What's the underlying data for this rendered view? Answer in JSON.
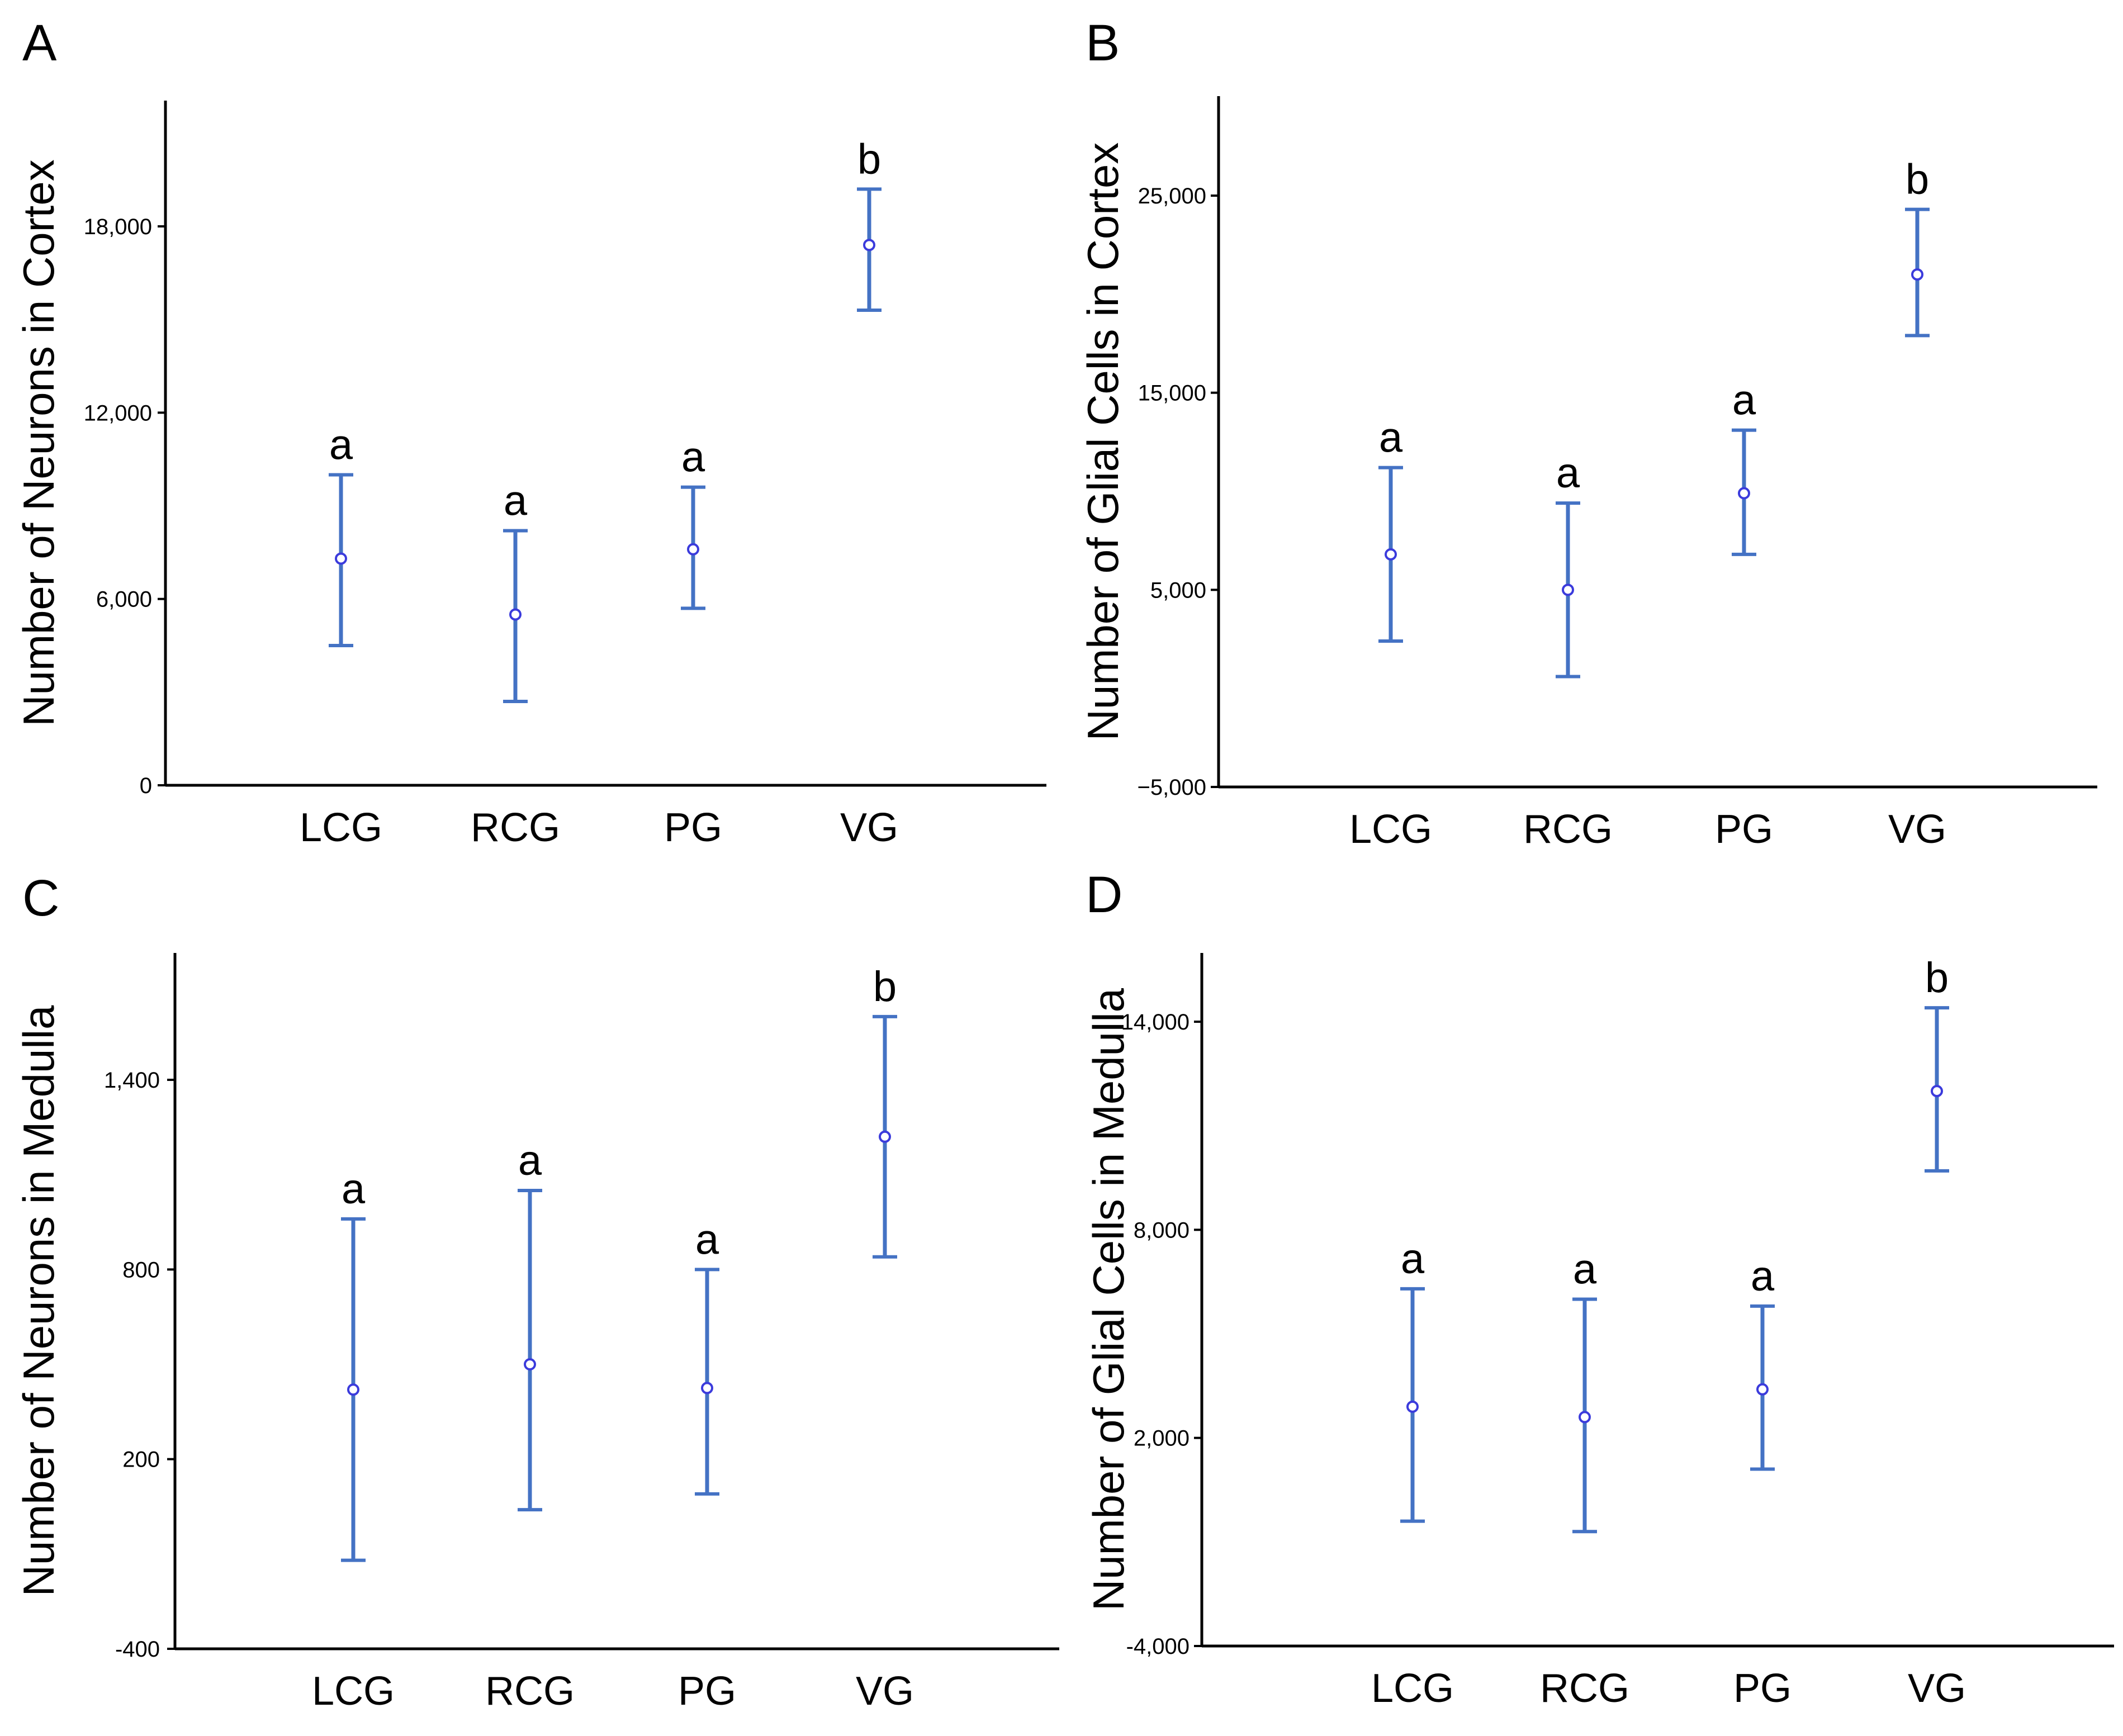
{
  "colors": {
    "errorbar": "#4472c4",
    "axis": "#000000",
    "point": "#3b3bdc"
  },
  "chart_data": [
    {
      "type": "errorbar",
      "panel": "A",
      "title": "",
      "xlabel": "",
      "ylabel": "Number of Neurons in Cortex",
      "categories": [
        "LCG",
        "RCG",
        "PG",
        "VG"
      ],
      "values": [
        7300,
        5500,
        7600,
        17400
      ],
      "lower": [
        4500,
        2700,
        5700,
        15300
      ],
      "upper": [
        10000,
        8200,
        9600,
        19200
      ],
      "significance": [
        "a",
        "a",
        "a",
        "b"
      ],
      "ylim": [
        0,
        22000
      ],
      "yticks": [
        0,
        6000,
        12000,
        18000
      ],
      "ytick_labels": [
        "0",
        "6,000",
        "12,000",
        "18,000"
      ],
      "grid": false
    },
    {
      "type": "errorbar",
      "panel": "B",
      "title": "",
      "xlabel": "",
      "ylabel": "Number of Glial Cells in Cortex",
      "categories": [
        "LCG",
        "RCG",
        "PG",
        "VG"
      ],
      "values": [
        6800,
        5000,
        9900,
        21000
      ],
      "lower": [
        2400,
        600,
        6800,
        17900
      ],
      "upper": [
        11200,
        9400,
        13100,
        24300
      ],
      "significance": [
        "a",
        "a",
        "a",
        "b"
      ],
      "ylim": [
        -5000,
        30000
      ],
      "yticks": [
        -5000,
        5000,
        15000,
        25000
      ],
      "ytick_labels": [
        "−5,000",
        "5,000",
        "15,000",
        "25,000"
      ],
      "grid": false
    },
    {
      "type": "errorbar",
      "panel": "C",
      "title": "",
      "xlabel": "",
      "ylabel": "Number of Neurons in Medulla",
      "categories": [
        "LCG",
        "RCG",
        "PG",
        "VG"
      ],
      "values": [
        420,
        500,
        425,
        1220
      ],
      "lower": [
        -120,
        40,
        90,
        840
      ],
      "upper": [
        960,
        1050,
        800,
        1600
      ],
      "significance": [
        "a",
        "a",
        "a",
        "b"
      ],
      "ylim": [
        -400,
        1800
      ],
      "yticks": [
        -400,
        200,
        800,
        1400
      ],
      "ytick_labels": [
        "-400",
        "200",
        "800",
        "1,400"
      ],
      "grid": false
    },
    {
      "type": "errorbar",
      "panel": "D",
      "title": "",
      "xlabel": "",
      "ylabel": "Number of Glial Cells in Medulla",
      "categories": [
        "LCG",
        "RCG",
        "PG",
        "VG"
      ],
      "values": [
        2900,
        2600,
        3400,
        12000
      ],
      "lower": [
        -400,
        -700,
        1100,
        9700
      ],
      "upper": [
        6300,
        6000,
        5800,
        14400
      ],
      "significance": [
        "a",
        "a",
        "a",
        "b"
      ],
      "ylim": [
        -4000,
        16000
      ],
      "yticks": [
        -4000,
        2000,
        8000,
        14000
      ],
      "ytick_labels": [
        "-4,000",
        "2,000",
        "8,000",
        "14,000"
      ],
      "grid": false
    }
  ]
}
